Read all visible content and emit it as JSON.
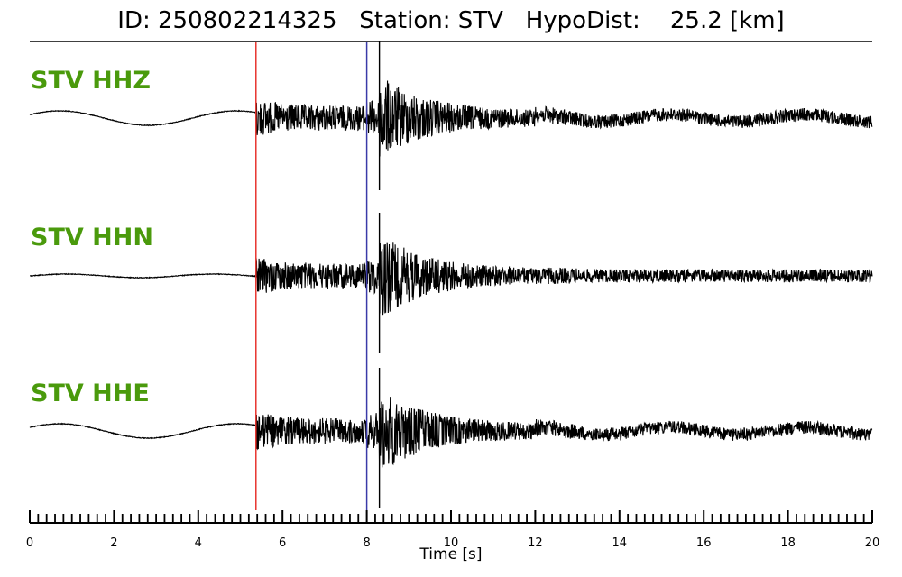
{
  "title": "ID: 250802214325   Station: STV   HypoDist:    25.2 [km]",
  "colors": {
    "label": "#4a9a0c",
    "trace": "#000000",
    "p_pick": "#e8352f",
    "s_pick": "#3a3aa8"
  },
  "chart_data": {
    "type": "line",
    "xlabel": "Time [s]",
    "xlim": [
      0,
      20
    ],
    "xticks": [
      "0",
      "2",
      "4",
      "6",
      "8",
      "10",
      "12",
      "14",
      "16",
      "18",
      "20"
    ],
    "minor_tick_step": 0.2,
    "picks": [
      {
        "name": "P",
        "time": 5.37,
        "color": "#e8352f"
      },
      {
        "name": "S",
        "time": 8.0,
        "color": "#3a3aa8"
      }
    ],
    "traces": [
      {
        "name": "STV HHZ",
        "preshape": "sine"
      },
      {
        "name": "STV HHN",
        "preshape": "flat"
      },
      {
        "name": "STV HHE",
        "preshape": "sine"
      }
    ]
  }
}
